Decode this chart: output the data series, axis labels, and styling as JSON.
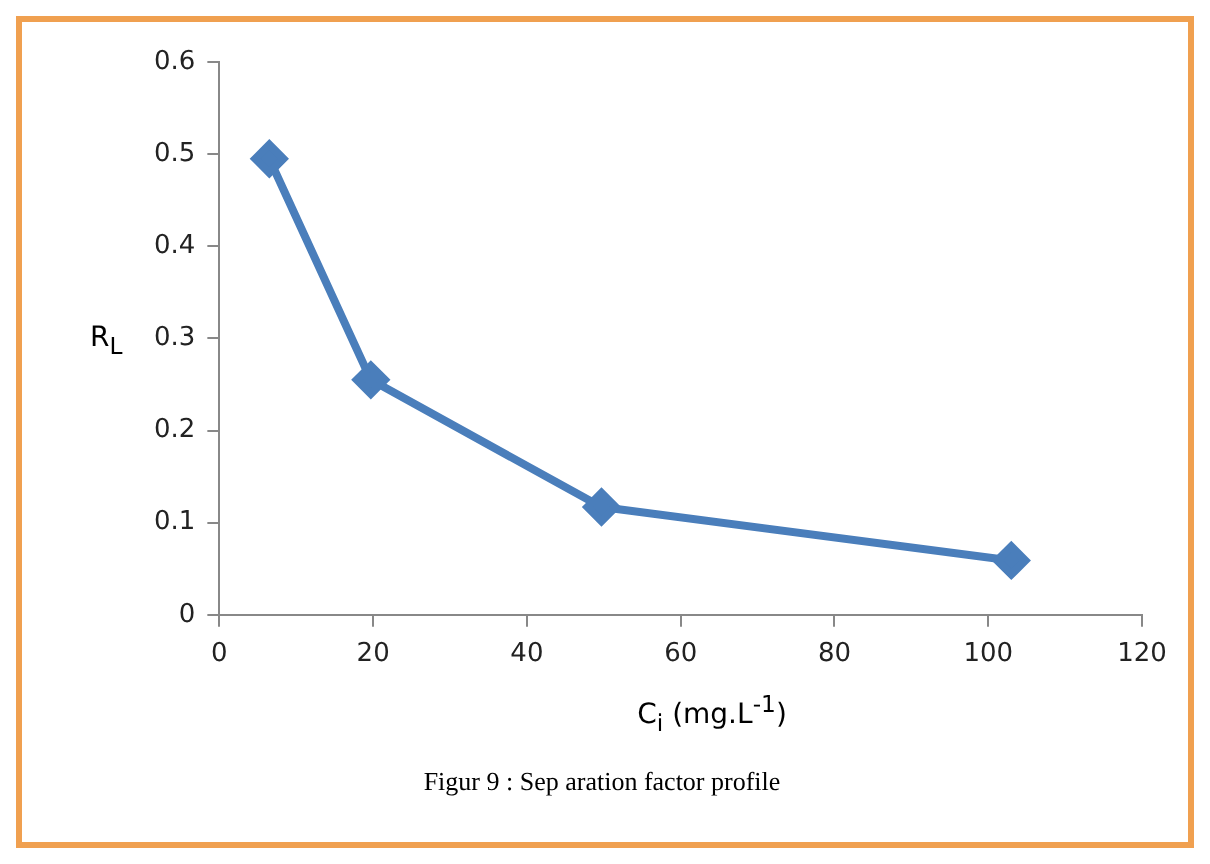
{
  "chart_data": {
    "type": "line",
    "xlabel": "C$_{i}$ (mg.L$^{-1}$)",
    "ylabel": "R$_{L}$",
    "annotations": [
      "Figur 9 : Sep aration factor profile"
    ],
    "x": [
      6.5,
      19.7,
      49.7,
      103
    ],
    "series": [
      {
        "color": "#4a7ebb",
        "values": [
          0.495,
          0.255,
          0.117,
          0.059
        ]
      }
    ],
    "xlim": [
      0,
      120
    ],
    "xticks": [
      0,
      20,
      40,
      60,
      80,
      100,
      120
    ],
    "ylim": [
      0,
      0.6
    ],
    "yticks": [
      0,
      0.1,
      0.2,
      0.3,
      0.4,
      0.5,
      0.6
    ],
    "grid": false,
    "legend": false,
    "marker": "diamond",
    "line_style": "solid"
  }
}
